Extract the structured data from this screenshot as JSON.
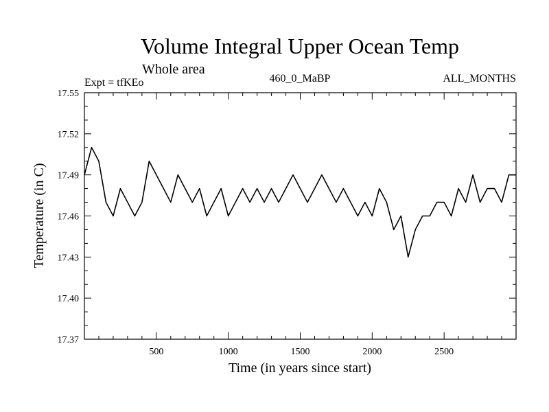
{
  "chart_data": {
    "type": "line",
    "title": "Volume Integral Upper Ocean Temp",
    "subtitle": "Whole area",
    "header_left": "Expt = tfKEo",
    "header_center": "460_0_MaBP",
    "header_right": "ALL_MONTHS",
    "xlabel": "Time (in years since start)",
    "ylabel": "Temperature (in C)",
    "xlim": [
      0,
      3000
    ],
    "ylim": [
      17.37,
      17.55
    ],
    "x_ticks": [
      500,
      1000,
      1500,
      2000,
      2500
    ],
    "y_ticks": [
      "17.37",
      "17.40",
      "17.43",
      "17.46",
      "17.49",
      "17.52",
      "17.55"
    ],
    "grid": false,
    "legend": "none",
    "line_color": "#000000",
    "series": [
      {
        "x": [
          0,
          50,
          100,
          150,
          200,
          250,
          300,
          350,
          400,
          450,
          500,
          550,
          600,
          650,
          700,
          750,
          800,
          850,
          900,
          950,
          1000,
          1050,
          1100,
          1150,
          1200,
          1250,
          1300,
          1350,
          1400,
          1450,
          1500,
          1550,
          1600,
          1650,
          1700,
          1750,
          1800,
          1850,
          1900,
          1950,
          2000,
          2050,
          2100,
          2150,
          2200,
          2250,
          2300,
          2350,
          2400,
          2450,
          2500,
          2550,
          2600,
          2650,
          2700,
          2750,
          2800,
          2850,
          2900,
          2950,
          3000
        ],
        "values": [
          17.49,
          17.51,
          17.5,
          17.47,
          17.46,
          17.48,
          17.47,
          17.46,
          17.47,
          17.5,
          17.49,
          17.48,
          17.47,
          17.49,
          17.48,
          17.47,
          17.48,
          17.46,
          17.47,
          17.48,
          17.46,
          17.47,
          17.48,
          17.47,
          17.48,
          17.47,
          17.48,
          17.47,
          17.48,
          17.49,
          17.48,
          17.47,
          17.48,
          17.49,
          17.48,
          17.47,
          17.48,
          17.47,
          17.46,
          17.47,
          17.46,
          17.48,
          17.47,
          17.45,
          17.46,
          17.43,
          17.45,
          17.46,
          17.46,
          17.47,
          17.47,
          17.46,
          17.48,
          17.47,
          17.49,
          17.47,
          17.48,
          17.48,
          17.47,
          17.49,
          17.49
        ]
      }
    ]
  }
}
